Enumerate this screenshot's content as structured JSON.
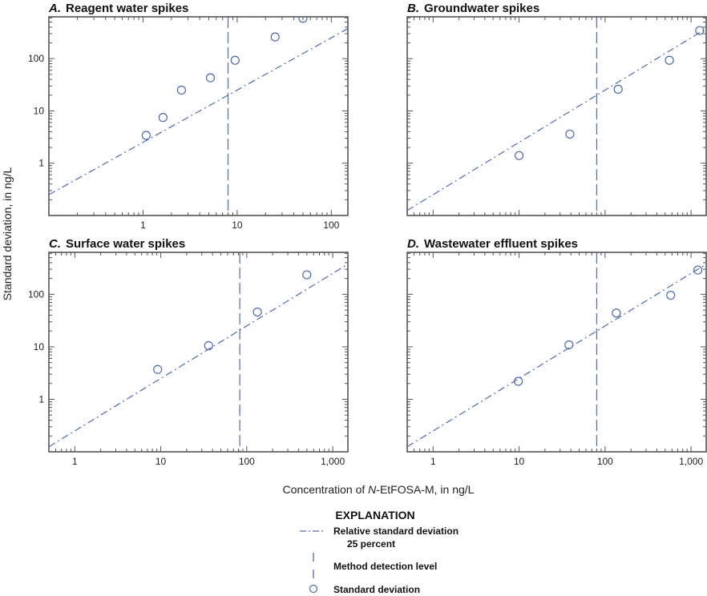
{
  "colors": {
    "series": "#4a68c0",
    "frame": "#555555",
    "text": "#222222"
  },
  "y_axis_label": "Standard deviation, in ng/L",
  "x_axis_label_pre": "Concentration of ",
  "x_axis_label_italic": "N",
  "x_axis_label_post": "-EtFOSA-M, in ng/L",
  "explanation": {
    "title": "EXPLANATION",
    "rsd_label_1": "Relative standard deviation",
    "rsd_label_2": "25 percent",
    "mdl_label": "Method detection level",
    "sd_label": "Standard deviation"
  },
  "chart_data": [
    {
      "type": "scatter",
      "letter": "A.",
      "title": "Reagent water spikes",
      "xscale": "log",
      "yscale": "log",
      "xlim": [
        0.1,
        150
      ],
      "ylim": [
        0.1,
        630
      ],
      "grid": false,
      "xticks": [
        {
          "v": 1,
          "label": "1"
        },
        {
          "v": 10,
          "label": "10"
        },
        {
          "v": 100,
          "label": "100"
        }
      ],
      "yticks": [
        {
          "v": 1,
          "label": "1"
        },
        {
          "v": 10,
          "label": "10"
        },
        {
          "v": 100,
          "label": "100"
        }
      ],
      "show_xlabels": true,
      "show_ylabels": true,
      "standard_deviation": {
        "x": [
          1.08,
          1.63,
          2.56,
          5.2,
          9.5,
          25.3,
          50
        ],
        "y": [
          3.4,
          7.5,
          25,
          43,
          93,
          260,
          590
        ]
      },
      "method_detection_level": 8,
      "rsd_line": {
        "x": [
          0.1,
          150
        ],
        "y": [
          0.25,
          375
        ]
      }
    },
    {
      "type": "scatter",
      "letter": "B.",
      "title": "Groundwater spikes",
      "xscale": "log",
      "yscale": "log",
      "xlim": [
        0.5,
        1500
      ],
      "ylim": [
        0.1,
        630
      ],
      "grid": false,
      "xticks": [
        {
          "v": 1,
          "label": ""
        },
        {
          "v": 10,
          "label": ""
        },
        {
          "v": 100,
          "label": ""
        },
        {
          "v": 1000,
          "label": ""
        }
      ],
      "yticks": [
        {
          "v": 1,
          "label": ""
        },
        {
          "v": 10,
          "label": ""
        },
        {
          "v": 100,
          "label": ""
        }
      ],
      "show_xlabels": false,
      "show_ylabels": false,
      "standard_deviation": {
        "x": [
          10,
          39,
          142,
          560,
          1260
        ],
        "y": [
          1.4,
          3.6,
          26,
          93,
          345
        ]
      },
      "method_detection_level": 80,
      "rsd_line": {
        "x": [
          0.5,
          1500
        ],
        "y": [
          0.125,
          375
        ]
      }
    },
    {
      "type": "scatter",
      "letter": "C.",
      "title": "Surface water spikes",
      "xscale": "log",
      "yscale": "log",
      "xlim": [
        0.5,
        1500
      ],
      "ylim": [
        0.1,
        630
      ],
      "grid": false,
      "xticks": [
        {
          "v": 1,
          "label": "1"
        },
        {
          "v": 10,
          "label": "10"
        },
        {
          "v": 100,
          "label": "100"
        },
        {
          "v": 1000,
          "label": "1,000"
        }
      ],
      "yticks": [
        {
          "v": 1,
          "label": "1"
        },
        {
          "v": 10,
          "label": "10"
        },
        {
          "v": 100,
          "label": "100"
        }
      ],
      "show_xlabels": true,
      "show_ylabels": true,
      "standard_deviation": {
        "x": [
          9.2,
          36,
          133,
          500
        ],
        "y": [
          3.7,
          10.5,
          46,
          235
        ]
      },
      "method_detection_level": 83,
      "rsd_line": {
        "x": [
          0.5,
          1500
        ],
        "y": [
          0.125,
          375
        ]
      }
    },
    {
      "type": "scatter",
      "letter": "D.",
      "title": "Wastewater effluent spikes",
      "xscale": "log",
      "yscale": "log",
      "xlim": [
        0.5,
        1500
      ],
      "ylim": [
        0.1,
        630
      ],
      "grid": false,
      "xticks": [
        {
          "v": 1,
          "label": "1"
        },
        {
          "v": 10,
          "label": "10"
        },
        {
          "v": 100,
          "label": "100"
        },
        {
          "v": 1000,
          "label": "1,000"
        }
      ],
      "yticks": [
        {
          "v": 1,
          "label": ""
        },
        {
          "v": 10,
          "label": ""
        },
        {
          "v": 100,
          "label": ""
        }
      ],
      "show_xlabels": true,
      "show_ylabels": false,
      "standard_deviation": {
        "x": [
          9.8,
          38,
          135,
          580,
          1200
        ],
        "y": [
          2.2,
          10.9,
          44,
          96,
          290
        ]
      },
      "method_detection_level": 80,
      "rsd_line": {
        "x": [
          0.5,
          1500
        ],
        "y": [
          0.125,
          375
        ]
      }
    }
  ]
}
